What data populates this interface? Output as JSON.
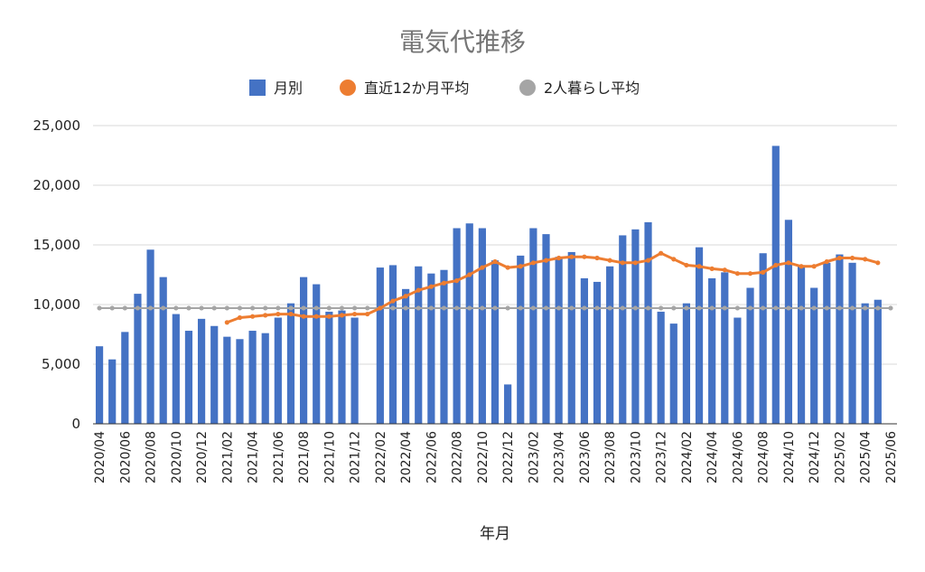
{
  "chart_data": {
    "type": "bar",
    "title": "電気代推移",
    "xlabel": "年月",
    "ylabel": "",
    "ylim": [
      0,
      25000
    ],
    "yticks": [
      0,
      5000,
      10000,
      15000,
      20000,
      25000
    ],
    "ytick_labels": [
      "0",
      "5,000",
      "10,000",
      "15,000",
      "20,000",
      "25,000"
    ],
    "grid": true,
    "legend_position": "top",
    "categories": [
      "2020/04",
      "2020/05",
      "2020/06",
      "2020/07",
      "2020/08",
      "2020/09",
      "2020/10",
      "2020/11",
      "2020/12",
      "2021/01",
      "2021/02",
      "2021/03",
      "2021/04",
      "2021/05",
      "2021/06",
      "2021/07",
      "2021/08",
      "2021/09",
      "2021/10",
      "2021/11",
      "2021/12",
      "2022/01",
      "2022/02",
      "2022/03",
      "2022/04",
      "2022/05",
      "2022/06",
      "2022/07",
      "2022/08",
      "2022/09",
      "2022/10",
      "2022/11",
      "2022/12",
      "2023/01",
      "2023/02",
      "2023/03",
      "2023/04",
      "2023/05",
      "2023/06",
      "2023/07",
      "2023/08",
      "2023/09",
      "2023/10",
      "2023/11",
      "2023/12",
      "2024/01",
      "2024/02",
      "2024/03",
      "2024/04",
      "2024/05",
      "2024/06",
      "2024/07",
      "2024/08",
      "2024/09",
      "2024/10",
      "2024/11",
      "2024/12",
      "2025/01",
      "2025/02",
      "2025/03",
      "2025/04",
      "2025/05",
      "2025/06"
    ],
    "xtick_labels": [
      "2020/04",
      "2020/06",
      "2020/08",
      "2020/10",
      "2020/12",
      "2021/02",
      "2021/04",
      "2021/06",
      "2021/08",
      "2021/10",
      "2021/12",
      "2022/02",
      "2022/04",
      "2022/06",
      "2022/08",
      "2022/10",
      "2022/12",
      "2023/02",
      "2023/04",
      "2023/06",
      "2023/08",
      "2023/10",
      "2023/12",
      "2024/02",
      "2024/04",
      "2024/06",
      "2024/08",
      "2024/10",
      "2024/12",
      "2025/02",
      "2025/04",
      "2025/06"
    ],
    "series": [
      {
        "name": "月別",
        "kind": "bar",
        "color": "#4472c4",
        "values": [
          6500,
          5400,
          7700,
          10900,
          14600,
          12300,
          9200,
          7800,
          8800,
          8200,
          7300,
          7100,
          7800,
          7600,
          8900,
          10100,
          12300,
          11700,
          9400,
          9500,
          8900,
          null,
          13100,
          13300,
          11300,
          13200,
          12600,
          12900,
          16400,
          16800,
          16400,
          13700,
          3300,
          14100,
          16400,
          15900,
          14000,
          14400,
          12200,
          11900,
          13200,
          15800,
          16300,
          16900,
          9400,
          8400,
          10100,
          14800,
          12200,
          12700,
          8900,
          11400,
          14300,
          23300,
          17100,
          13300,
          11400,
          13500,
          14200,
          13500,
          10100,
          10400,
          null
        ]
      },
      {
        "name": "直近12か月平均",
        "kind": "line",
        "color": "#ed7d31",
        "values": [
          null,
          null,
          null,
          null,
          null,
          null,
          null,
          null,
          null,
          null,
          8500,
          8900,
          9000,
          9100,
          9200,
          9200,
          9000,
          9000,
          9000,
          9100,
          9200,
          9200,
          9700,
          10300,
          10700,
          11200,
          11500,
          11800,
          12000,
          12500,
          13100,
          13600,
          13100,
          13200,
          13500,
          13700,
          13900,
          14000,
          14000,
          13900,
          13700,
          13500,
          13500,
          13700,
          14300,
          13800,
          13300,
          13200,
          13000,
          12900,
          12600,
          12600,
          12700,
          13300,
          13500,
          13200,
          13200,
          13600,
          13900,
          13900,
          13800,
          13500,
          null
        ]
      },
      {
        "name": "2人暮らし平均",
        "kind": "line",
        "color": "#a5a5a5",
        "values": [
          9700,
          9700,
          9700,
          9700,
          9700,
          9700,
          9700,
          9700,
          9700,
          9700,
          9700,
          9700,
          9700,
          9700,
          9700,
          9700,
          9700,
          9700,
          9700,
          9700,
          9700,
          9700,
          9700,
          9700,
          9700,
          9700,
          9700,
          9700,
          9700,
          9700,
          9700,
          9700,
          9700,
          9700,
          9700,
          9700,
          9700,
          9700,
          9700,
          9700,
          9700,
          9700,
          9700,
          9700,
          9700,
          9700,
          9700,
          9700,
          9700,
          9700,
          9700,
          9700,
          9700,
          9700,
          9700,
          9700,
          9700,
          9700,
          9700,
          9700,
          9700,
          9700,
          9700
        ]
      }
    ]
  }
}
